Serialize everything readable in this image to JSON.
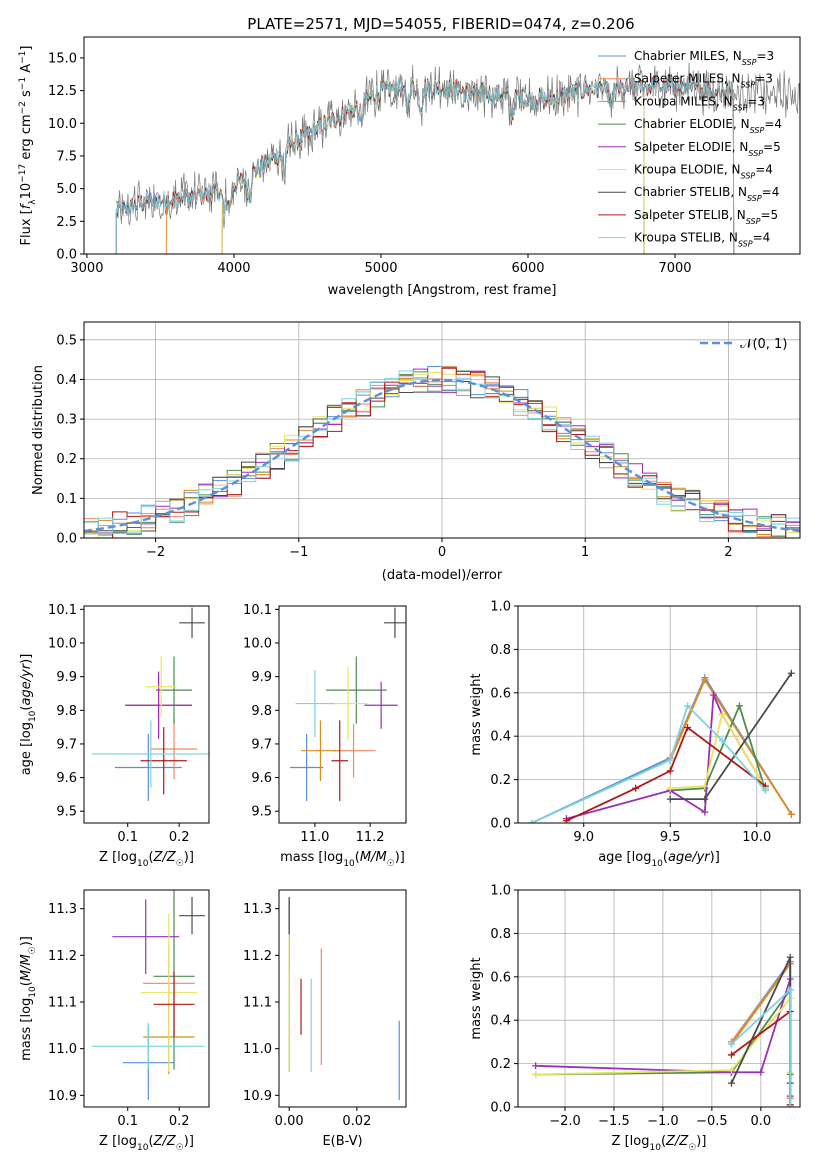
{
  "title": "PLATE=2571, MJD=54055, FIBERID=0474, z=0.206",
  "colors": {
    "chabrier_miles": "#5b8fd9",
    "salpeter_miles": "#f08a64",
    "kroupa_miles": "#d98c1e",
    "chabrier_elodie": "#4f8a4f",
    "salpeter_elodie": "#9a30b8",
    "kroupa_elodie": "#e5e560",
    "chabrier_stelib": "#4a4a4a",
    "salpeter_stelib": "#b01818",
    "kroupa_stelib": "#7fd3e0",
    "data_spectrum": "#777777",
    "gaussian": "#5b8fd9",
    "grid": "#b0b0b0"
  },
  "chart_data": [
    {
      "id": "spectrum",
      "type": "line",
      "title": "PLATE=2571, MJD=54055, FIBERID=0474, z=0.206",
      "xlabel": "wavelength [Angstrom, rest frame]",
      "ylabel": "Flux [f_λ 10^-17 erg cm^-2 s^-1 A^-1]",
      "xlim": [
        2980,
        7850
      ],
      "ylim": [
        0,
        16.6
      ],
      "xticks": [
        "3000",
        "4000",
        "5000",
        "6000",
        "7000"
      ],
      "yticks": [
        "0.0",
        "2.5",
        "5.0",
        "7.5",
        "10.0",
        "12.5",
        "15.0"
      ],
      "grid": false,
      "legend_position": "top-right",
      "legend": [
        "Chabrier MILES, N_SSP=3",
        "Salpeter MILES, N_SSP=3",
        "Kroupa MILES, N_SSP=3",
        "Chabrier ELODIE, N_SSP=4",
        "Salpeter ELODIE, N_SSP=5",
        "Kroupa ELODIE, N_SSP=4",
        "Chabrier STELIB, N_SSP=4",
        "Salpeter STELIB, N_SSP=5",
        "Kroupa STELIB, N_SSP=4"
      ],
      "continuum_x": [
        3200,
        3400,
        3600,
        3800,
        4000,
        4200,
        4400,
        4600,
        4800,
        5000,
        5200,
        5400,
        5600,
        5800,
        6000,
        6200,
        6400,
        6600,
        6800,
        7000,
        7200,
        7400,
        7850
      ],
      "continuum_y": [
        3.2,
        4.0,
        4.2,
        4.5,
        5.2,
        6.7,
        8.5,
        9.8,
        11.0,
        12.5,
        12.8,
        12.7,
        12.4,
        12.2,
        11.8,
        12.0,
        12.6,
        12.6,
        12.8,
        12.8,
        12.6,
        12.4,
        12.2
      ],
      "model_start_wavelengths": [
        3200,
        3540,
        3540,
        3920,
        3920,
        3920,
        3200,
        3200,
        3200
      ],
      "model_end_wavelengths": [
        7400,
        7400,
        7400,
        6790,
        6790,
        6790,
        7400,
        7400,
        7400
      ]
    },
    {
      "id": "residuals",
      "type": "histogram",
      "xlabel": "(data-model)/error",
      "ylabel": "Normed distribution",
      "xlim": [
        -2.5,
        2.5
      ],
      "ylim": [
        0,
        0.545
      ],
      "xticks": [
        "−2",
        "−1",
        "0",
        "1",
        "2"
      ],
      "yticks": [
        "0.0",
        "0.1",
        "0.2",
        "0.3",
        "0.4",
        "0.5"
      ],
      "grid": true,
      "legend_position": "top-right",
      "legend": [
        "𝒩(0, 1)"
      ],
      "bin_width": 0.1
    },
    {
      "id": "age_vs_z",
      "type": "errorbar",
      "xlabel": "Z [log10(Z/Z☉)]",
      "ylabel": "age  [log10(age/yr)]",
      "xlim": [
        0.015,
        0.258
      ],
      "ylim": [
        9.465,
        10.11
      ],
      "xticks": [
        "0.1",
        "0.2"
      ],
      "yticks": [
        "9.5",
        "9.6",
        "9.7",
        "9.8",
        "9.9",
        "10.0",
        "10.1"
      ],
      "points": [
        {
          "model": "chabrier_miles",
          "x": 0.14,
          "xerr": 0.065,
          "y": 9.63,
          "yerr": 0.1
        },
        {
          "model": "salpeter_miles",
          "x": 0.19,
          "xerr": 0.045,
          "y": 9.685,
          "yerr": 0.09
        },
        {
          "model": "kroupa_miles",
          "x": 0.16,
          "xerr": 0.065,
          "y": 9.815,
          "yerr": 0.09
        },
        {
          "model": "chabrier_elodie",
          "x": 0.19,
          "xerr": 0.035,
          "y": 9.86,
          "yerr": 0.1
        },
        {
          "model": "salpeter_elodie",
          "x": 0.16,
          "xerr": 0.065,
          "y": 9.815,
          "yerr": 0.1
        },
        {
          "model": "kroupa_elodie",
          "x": 0.165,
          "xerr": 0.03,
          "y": 9.87,
          "yerr": 0.09
        },
        {
          "model": "chabrier_stelib",
          "x": 0.225,
          "xerr": 0.025,
          "y": 10.06,
          "yerr": 0.045
        },
        {
          "model": "salpeter_stelib",
          "x": 0.17,
          "xerr": 0.045,
          "y": 9.65,
          "yerr": 0.1
        },
        {
          "model": "kroupa_stelib",
          "x": 0.145,
          "xerr": 0.115,
          "y": 9.67,
          "yerr": 0.1
        }
      ]
    },
    {
      "id": "age_vs_mass",
      "type": "errorbar",
      "xlabel": "mass [log10(M/M☉)]",
      "ylabel": "",
      "xlim": [
        10.87,
        11.33
      ],
      "ylim": [
        9.465,
        10.11
      ],
      "xticks": [
        "11.0",
        "11.2"
      ],
      "yticks": [
        "9.5",
        "9.6",
        "9.7",
        "9.8",
        "9.9",
        "10.0",
        "10.1"
      ],
      "points": [
        {
          "model": "chabrier_miles",
          "x": 10.97,
          "xerr": 0.06,
          "y": 9.63,
          "yerr": 0.1
        },
        {
          "model": "salpeter_miles",
          "x": 11.14,
          "xerr": 0.08,
          "y": 9.68,
          "yerr": 0.08
        },
        {
          "model": "kroupa_miles",
          "x": 11.02,
          "xerr": 0.07,
          "y": 9.68,
          "yerr": 0.09
        },
        {
          "model": "chabrier_elodie",
          "x": 11.15,
          "xerr": 0.11,
          "y": 9.86,
          "yerr": 0.1
        },
        {
          "model": "salpeter_elodie",
          "x": 11.24,
          "xerr": 0.06,
          "y": 9.815,
          "yerr": 0.07
        },
        {
          "model": "kroupa_elodie",
          "x": 11.12,
          "xerr": 0.07,
          "y": 9.82,
          "yerr": 0.11
        },
        {
          "model": "chabrier_stelib",
          "x": 11.29,
          "xerr": 0.04,
          "y": 10.06,
          "yerr": 0.045
        },
        {
          "model": "salpeter_stelib",
          "x": 11.09,
          "xerr": 0.03,
          "y": 9.65,
          "yerr": 0.12
        },
        {
          "model": "kroupa_stelib",
          "x": 11.0,
          "xerr": 0.07,
          "y": 9.82,
          "yerr": 0.1
        }
      ]
    },
    {
      "id": "weight_vs_age",
      "type": "line",
      "xlabel": "age  [log10(age/yr)]",
      "ylabel": "mass weight",
      "xlim": [
        8.62,
        10.25
      ],
      "ylim": [
        0,
        1
      ],
      "xticks": [
        "9.0",
        "9.5",
        "10.0"
      ],
      "yticks": [
        "0.0",
        "0.2",
        "0.4",
        "0.6",
        "0.8",
        "1.0"
      ],
      "grid": true,
      "series": [
        {
          "model": "chabrier_miles",
          "x": [
            8.7,
            9.5,
            9.7,
            10.2
          ],
          "y": [
            0.0,
            0.3,
            0.67,
            0.04
          ]
        },
        {
          "model": "salpeter_miles",
          "x": [
            9.5,
            9.7,
            10.2
          ],
          "y": [
            0.3,
            0.66,
            0.04
          ]
        },
        {
          "model": "kroupa_miles",
          "x": [
            9.5,
            9.7,
            10.2
          ],
          "y": [
            0.29,
            0.66,
            0.04
          ]
        },
        {
          "model": "chabrier_elodie",
          "x": [
            9.5,
            9.7,
            9.9,
            10.05
          ],
          "y": [
            0.15,
            0.16,
            0.54,
            0.15
          ]
        },
        {
          "model": "salpeter_elodie",
          "x": [
            8.9,
            9.5,
            9.7,
            9.75,
            9.8,
            10.05
          ],
          "y": [
            0.02,
            0.15,
            0.05,
            0.59,
            0.5,
            0.16
          ]
        },
        {
          "model": "kroupa_elodie",
          "x": [
            9.5,
            9.7,
            9.8,
            10.05
          ],
          "y": [
            0.16,
            0.17,
            0.5,
            0.16
          ]
        },
        {
          "model": "chabrier_stelib",
          "x": [
            9.5,
            9.7,
            10.2
          ],
          "y": [
            0.11,
            0.11,
            0.69
          ]
        },
        {
          "model": "salpeter_stelib",
          "x": [
            8.9,
            9.3,
            9.5,
            9.6,
            10.05
          ],
          "y": [
            0.01,
            0.16,
            0.24,
            0.44,
            0.17
          ]
        },
        {
          "model": "kroupa_stelib",
          "x": [
            8.7,
            9.5,
            9.6,
            9.8,
            10.05
          ],
          "y": [
            0.0,
            0.29,
            0.54,
            0.38,
            0.15
          ]
        }
      ]
    },
    {
      "id": "mass_vs_z",
      "type": "errorbar",
      "xlabel": "Z [log10(Z/Z☉)]",
      "ylabel": "mass [log10(M/M☉)]",
      "xlim": [
        0.015,
        0.258
      ],
      "ylim": [
        10.875,
        11.34
      ],
      "xticks": [
        "0.1",
        "0.2"
      ],
      "yticks": [
        "10.9",
        "11.0",
        "11.1",
        "11.2",
        "11.3"
      ],
      "points": [
        {
          "model": "chabrier_miles",
          "x": 0.14,
          "xerr": 0.05,
          "y": 10.97,
          "yerr": 0.08
        },
        {
          "model": "salpeter_miles",
          "x": 0.18,
          "xerr": 0.05,
          "y": 11.14,
          "yerr": 0.08
        },
        {
          "model": "kroupa_miles",
          "x": 0.18,
          "xerr": 0.05,
          "y": 11.025,
          "yerr": 0.08
        },
        {
          "model": "chabrier_elodie",
          "x": 0.19,
          "xerr": 0.04,
          "y": 11.155,
          "yerr": 0.2
        },
        {
          "model": "salpeter_elodie",
          "x": 0.135,
          "xerr": 0.065,
          "y": 11.24,
          "yerr": 0.08
        },
        {
          "model": "kroupa_elodie",
          "x": 0.18,
          "xerr": 0.055,
          "y": 11.12,
          "yerr": 0.17
        },
        {
          "model": "chabrier_stelib",
          "x": 0.225,
          "xerr": 0.025,
          "y": 11.285,
          "yerr": 0.04
        },
        {
          "model": "salpeter_stelib",
          "x": 0.19,
          "xerr": 0.04,
          "y": 11.095,
          "yerr": 0.07
        },
        {
          "model": "kroupa_stelib",
          "x": 0.14,
          "xerr": 0.11,
          "y": 11.005,
          "yerr": 0.05
        }
      ]
    },
    {
      "id": "mass_vs_ebv",
      "type": "errorbar",
      "xlabel": "E(B-V)",
      "ylabel": "",
      "xlim": [
        -0.003,
        0.0345
      ],
      "ylim": [
        10.875,
        11.34
      ],
      "xticks": [
        "0.00",
        "0.02"
      ],
      "yticks": [
        "10.9",
        "11.0",
        "11.1",
        "11.2",
        "11.3"
      ],
      "points": [
        {
          "model": "chabrier_miles",
          "x": 0.0325,
          "xerr": 0,
          "y": 10.975,
          "yerr": 0.085
        },
        {
          "model": "salpeter_miles",
          "x": 0.0095,
          "xerr": 0,
          "y": 11.09,
          "yerr": 0.125
        },
        {
          "model": "kroupa_miles",
          "x": 0.0,
          "xerr": 0,
          "y": 11.05,
          "yerr": 0.1
        },
        {
          "model": "chabrier_elodie",
          "x": 0.0,
          "xerr": 0,
          "y": 11.1,
          "yerr": 0.15
        },
        {
          "model": "salpeter_elodie",
          "x": 0.0,
          "xerr": 0,
          "y": 11.24,
          "yerr": 0.08
        },
        {
          "model": "kroupa_elodie",
          "x": 0.0,
          "xerr": 0,
          "y": 11.1,
          "yerr": 0.15
        },
        {
          "model": "chabrier_stelib",
          "x": 0.0,
          "xerr": 0,
          "y": 11.285,
          "yerr": 0.04
        },
        {
          "model": "salpeter_stelib",
          "x": 0.0035,
          "xerr": 0,
          "y": 11.09,
          "yerr": 0.06
        },
        {
          "model": "kroupa_stelib",
          "x": 0.0065,
          "xerr": 0,
          "y": 11.05,
          "yerr": 0.1
        }
      ]
    },
    {
      "id": "weight_vs_z",
      "type": "line",
      "xlabel": "Z [log10(Z/Z☉)]",
      "ylabel": "mass weight",
      "xlim": [
        -2.48,
        0.4
      ],
      "ylim": [
        0,
        1
      ],
      "xticks": [
        "−2.0",
        "−1.5",
        "−1.0",
        "−0.5",
        "0.0"
      ],
      "yticks": [
        "0.0",
        "0.2",
        "0.4",
        "0.6",
        "0.8",
        "1.0"
      ],
      "grid": true,
      "series": [
        {
          "model": "chabrier_miles",
          "x": [
            -0.3,
            0.3,
            0.3
          ],
          "y": [
            0.3,
            0.67,
            0.0
          ]
        },
        {
          "model": "salpeter_miles",
          "x": [
            -0.3,
            0.3,
            0.3
          ],
          "y": [
            0.3,
            0.66,
            0.0
          ]
        },
        {
          "model": "kroupa_miles",
          "x": [
            -0.3,
            0.3,
            0.3
          ],
          "y": [
            0.29,
            0.66,
            0.04
          ]
        },
        {
          "model": "chabrier_elodie",
          "x": [
            -2.3,
            -0.3,
            0.3,
            0.3
          ],
          "y": [
            0.15,
            0.16,
            0.54,
            0.15
          ]
        },
        {
          "model": "salpeter_elodie",
          "x": [
            -2.3,
            -0.3,
            0.0,
            0.3,
            0.3
          ],
          "y": [
            0.19,
            0.16,
            0.16,
            0.59,
            0.05
          ]
        },
        {
          "model": "kroupa_elodie",
          "x": [
            -2.3,
            -0.3,
            0.3,
            0.3
          ],
          "y": [
            0.15,
            0.17,
            0.5,
            0.16
          ]
        },
        {
          "model": "chabrier_stelib",
          "x": [
            -0.3,
            0.3,
            0.3
          ],
          "y": [
            0.11,
            0.69,
            0.11
          ]
        },
        {
          "model": "salpeter_stelib",
          "x": [
            -0.3,
            0.3,
            0.3
          ],
          "y": [
            0.24,
            0.44,
            0.01
          ]
        },
        {
          "model": "kroupa_stelib",
          "x": [
            -0.3,
            0.3,
            0.3
          ],
          "y": [
            0.29,
            0.54,
            0.0
          ]
        }
      ]
    }
  ]
}
